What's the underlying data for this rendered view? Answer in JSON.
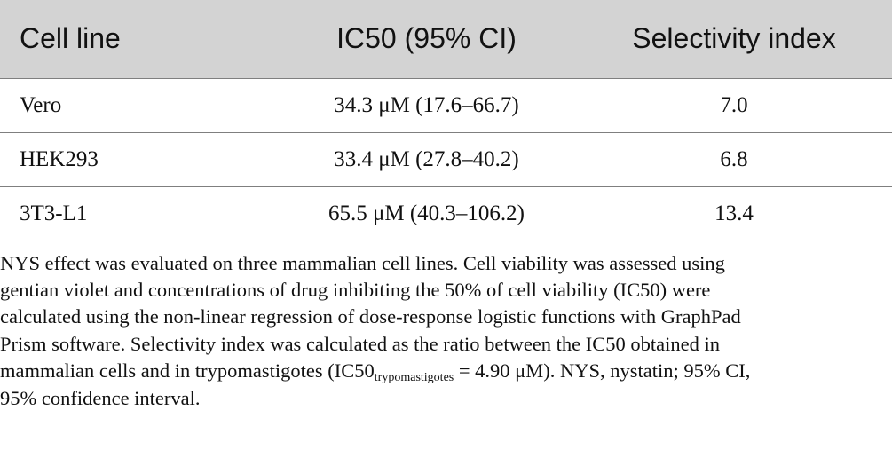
{
  "table": {
    "headers": [
      "Cell line",
      "IC50 (95% CI)",
      "Selectivity index"
    ],
    "rows": [
      {
        "cell_line": "Vero",
        "ic50": "34.3 μM (17.6–66.7)",
        "selectivity": "7.0"
      },
      {
        "cell_line": "HEK293",
        "ic50": "33.4 μM (27.8–40.2)",
        "selectivity": "6.8"
      },
      {
        "cell_line": "3T3-L1",
        "ic50": "65.5 μM (40.3–106.2)",
        "selectivity": "13.4"
      }
    ]
  },
  "caption": {
    "line1": "NYS effect was evaluated on three mammalian cell lines. Cell viability was assessed using",
    "line2": "gentian violet and concentrations of drug inhibiting the 50% of cell viability (IC50) were",
    "line3": "calculated using the non-linear regression of dose-response logistic functions with GraphPad",
    "line4": "Prism software. Selectivity index was calculated as the ratio between the IC50 obtained in",
    "line5_pre": "mammalian cells and in trypomastigotes (IC50",
    "line5_sub": "trypomastigotes",
    "line5_post": " = 4.90 μM). NYS, nystatin; 95% CI,",
    "line6": "95% confidence interval."
  }
}
